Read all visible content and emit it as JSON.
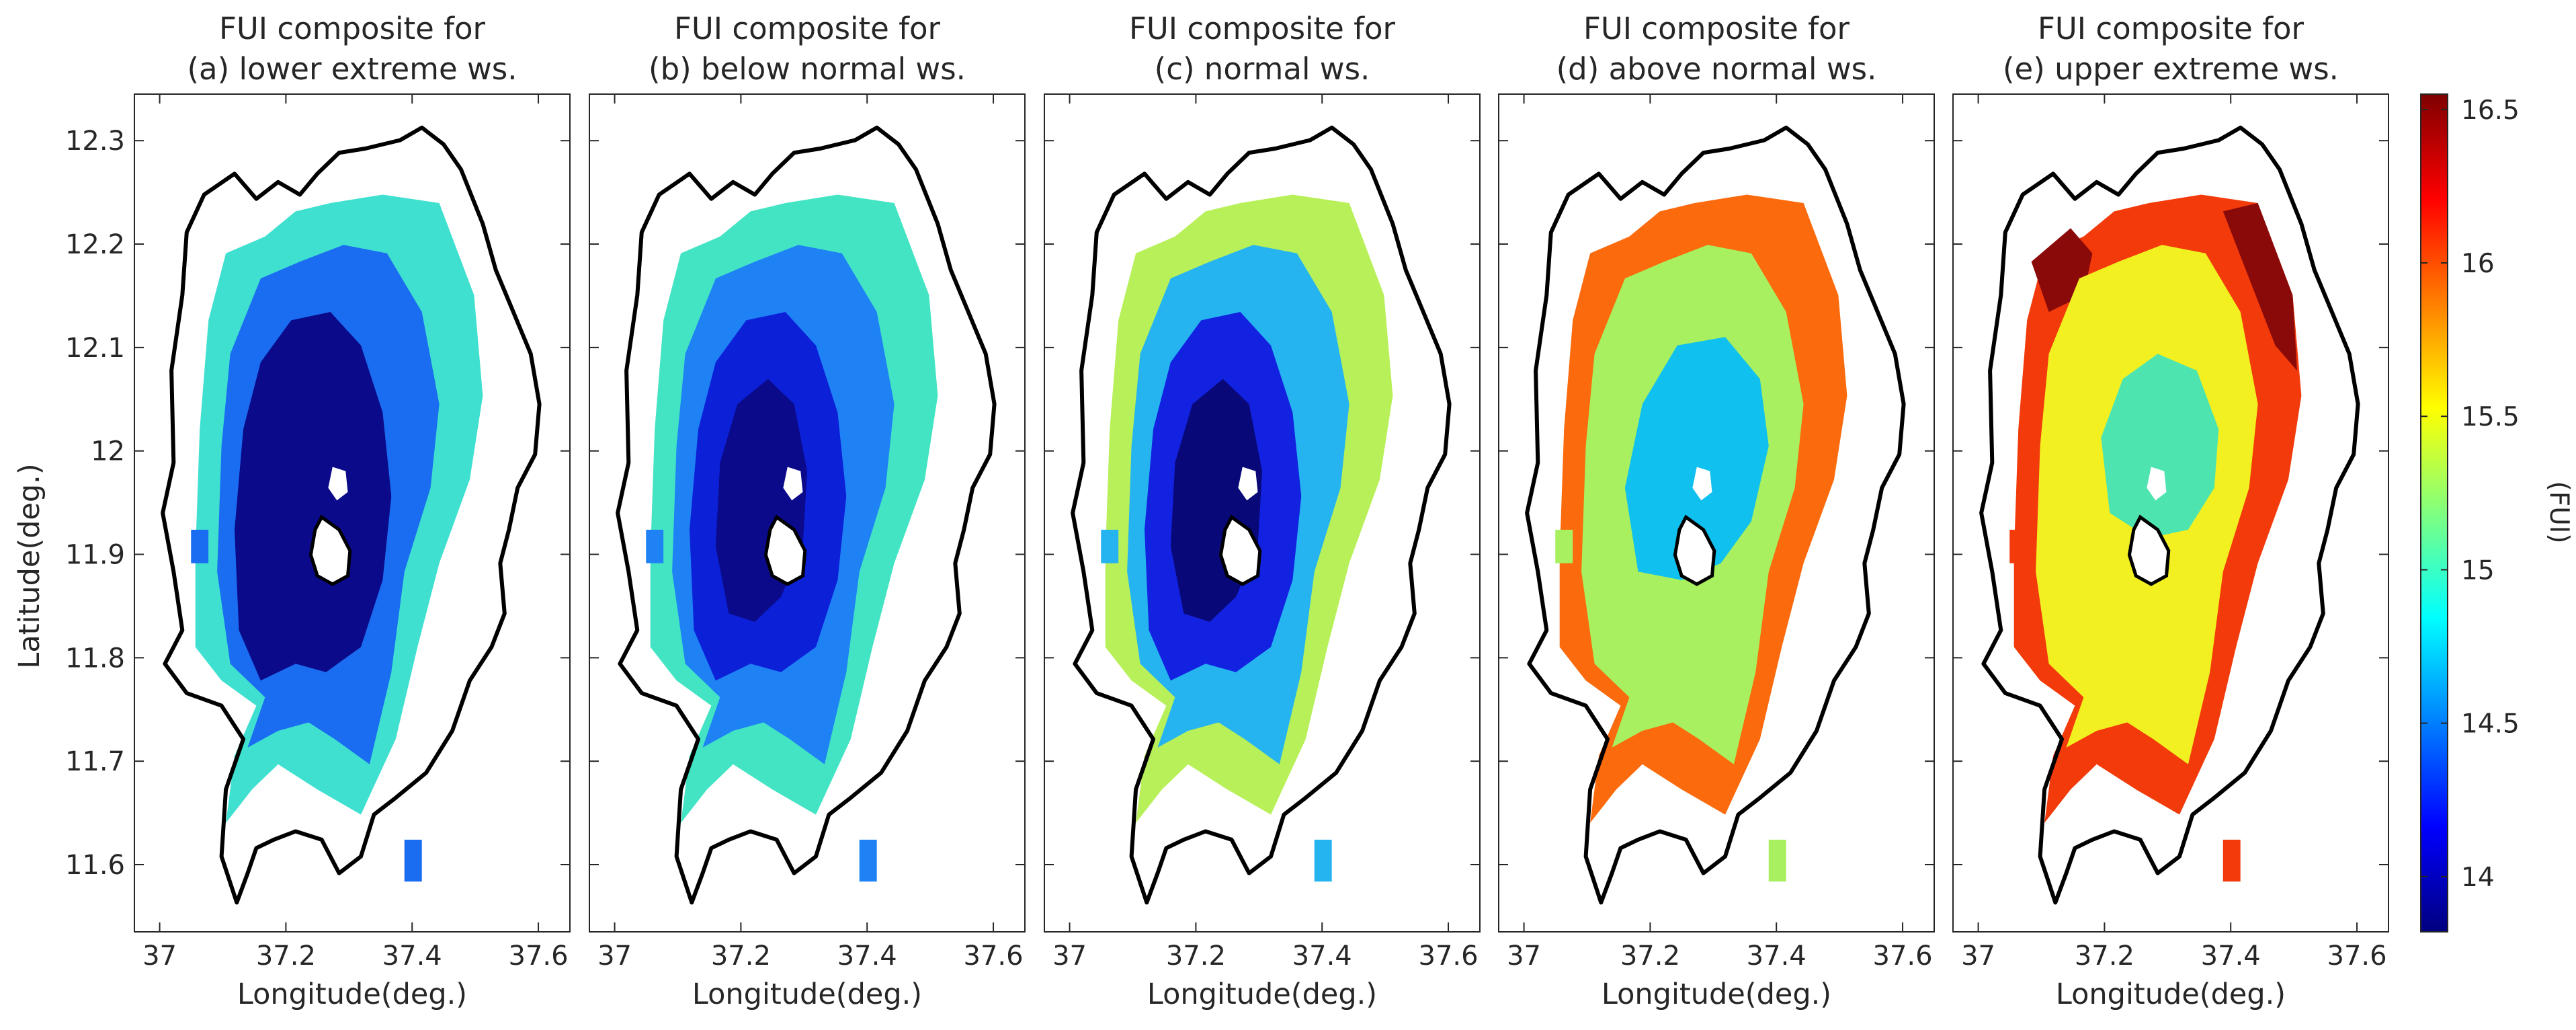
{
  "figure": {
    "panels": [
      {
        "title_line1": "FUI composite for",
        "title_line2": "(a) lower extreme ws.",
        "xlabel": "Longitude(deg.)"
      },
      {
        "title_line1": "FUI composite for",
        "title_line2": "(b) below normal ws.",
        "xlabel": "Longitude(deg.)"
      },
      {
        "title_line1": "FUI composite for",
        "title_line2": "(c) normal ws.",
        "xlabel": "Longitude(deg.)"
      },
      {
        "title_line1": "FUI composite for",
        "title_line2": "(d) above normal ws.",
        "xlabel": "Longitude(deg.)"
      },
      {
        "title_line1": "FUI composite for",
        "title_line2": "(e) upper extreme ws.",
        "xlabel": "Longitude(deg.)"
      }
    ],
    "ylabel": "Latitude(deg.)",
    "colorbar_label": "(FUI)"
  },
  "chart_data": {
    "type": "heatmap",
    "subtype": "spatial composite maps (5 panels) with shared colorbar",
    "xlim": [
      36.96,
      37.65
    ],
    "ylim": [
      11.535,
      12.345
    ],
    "xticks": [
      "37",
      "37.2",
      "37.4",
      "37.6"
    ],
    "xtick_values": [
      37.0,
      37.2,
      37.4,
      37.6
    ],
    "yticks": [
      "11.6",
      "11.7",
      "11.8",
      "11.9",
      "12",
      "12.1",
      "12.2",
      "12.3"
    ],
    "ytick_values": [
      11.6,
      11.7,
      11.8,
      11.9,
      12.0,
      12.1,
      12.2,
      12.3
    ],
    "colorbar": {
      "colormap": "jet",
      "range": [
        13.82,
        16.55
      ],
      "ticks": [
        "14",
        "14.5",
        "15",
        "15.5",
        "16",
        "16.5"
      ],
      "tick_values": [
        14.0,
        14.5,
        15.0,
        15.5,
        16.0,
        16.5
      ]
    },
    "panels": [
      {
        "name": "(a) lower extreme ws.",
        "zones": [
          {
            "fui": 14.95,
            "color": "#3fe0d0"
          },
          {
            "fui": 14.25,
            "color": "#1a6cf0"
          },
          {
            "fui": 13.85,
            "color": "#0a0a8a"
          }
        ]
      },
      {
        "name": "(b) below normal ws.",
        "zones": [
          {
            "fui": 14.9,
            "color": "#43e4c4"
          },
          {
            "fui": 14.3,
            "color": "#1e82f5"
          },
          {
            "fui": 13.95,
            "color": "#0c20d8"
          },
          {
            "fui": 13.85,
            "color": "#0a0a8a"
          }
        ]
      },
      {
        "name": "(c) normal ws.",
        "zones": [
          {
            "fui": 15.3,
            "color": "#b8f05a"
          },
          {
            "fui": 14.55,
            "color": "#26b4f0"
          },
          {
            "fui": 14.1,
            "color": "#1222e0"
          },
          {
            "fui": 13.85,
            "color": "#080878"
          }
        ]
      },
      {
        "name": "(d) above normal ws.",
        "zones": [
          {
            "fui": 16.1,
            "color": "#fb6a0c"
          },
          {
            "fui": 15.3,
            "color": "#a8f060"
          },
          {
            "fui": 14.75,
            "color": "#10c0ee"
          }
        ]
      },
      {
        "name": "(e) upper extreme ws.",
        "zones": [
          {
            "fui": 16.5,
            "color": "#8a0a0a"
          },
          {
            "fui": 16.2,
            "color": "#f23a0a"
          },
          {
            "fui": 15.55,
            "color": "#f2f020"
          },
          {
            "fui": 15.0,
            "color": "#4ee4b0"
          }
        ]
      }
    ]
  }
}
